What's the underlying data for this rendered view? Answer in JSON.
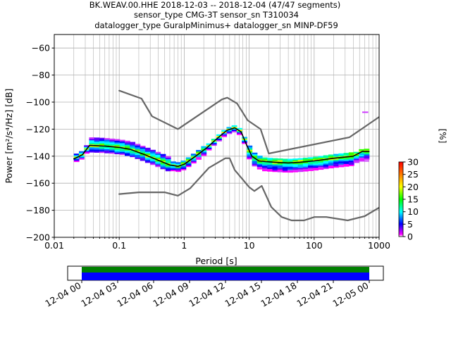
{
  "chart_data": {
    "type": "heatmap",
    "title_lines": [
      "BK.WEAV.00.HHE   2018-12-03 -- 2018-12-04  (47/47 segments)",
      "sensor_type CMG-3T sensor_sn T310034",
      "datalogger_type GuralpMinimus+ datalogger_sn MINP-DF59"
    ],
    "xlabel": "Period [s]",
    "ylabel": "Power [m²/s⁴/Hz] [dB]",
    "xscale": "log",
    "xlim": [
      0.01,
      1000
    ],
    "ylim": [
      -200,
      -50
    ],
    "xtick_labels": [
      "0.01",
      "0.1",
      "1",
      "10",
      "100",
      "1000"
    ],
    "ytick_values": [
      -200,
      -180,
      -160,
      -140,
      -120,
      -100,
      -80,
      -60
    ],
    "grid": true,
    "series": [
      {
        "role": "model-upper",
        "color": "#666666",
        "x": [
          0.1,
          0.22,
          0.32,
          0.8,
          3.8,
          4.6,
          6.5,
          9.5,
          15.0,
          20.0,
          350.0,
          1000.0
        ],
        "y": [
          -91.5,
          -97.4,
          -110.5,
          -120.0,
          -98.0,
          -96.7,
          -101.0,
          -113.5,
          -120.0,
          -138.0,
          -126.0,
          -111.0
        ]
      },
      {
        "role": "model-lower",
        "color": "#666666",
        "x": [
          0.1,
          0.2,
          0.5,
          0.8,
          1.24,
          2.4,
          4.3,
          5.0,
          6.0,
          10.0,
          12.0,
          15.6,
          21.9,
          31.6,
          45.0,
          70.0,
          101.0,
          154.0,
          328.0,
          600.0,
          1000.0
        ],
        "y": [
          -168.0,
          -166.7,
          -166.7,
          -169.2,
          -163.7,
          -148.6,
          -141.5,
          -141.5,
          -150.2,
          -162.9,
          -165.8,
          -162.0,
          -177.6,
          -185.0,
          -187.5,
          -187.5,
          -185.0,
          -185.0,
          -187.5,
          -184.4,
          -178.0
        ]
      },
      {
        "role": "mean",
        "color": "#000000",
        "x": [
          0.02,
          0.027,
          0.035,
          0.06,
          0.1,
          0.15,
          0.25,
          0.4,
          0.6,
          0.8,
          1.0,
          1.5,
          2.2,
          3.2,
          4.5,
          6.0,
          7.5,
          9.0,
          11.0,
          14.0,
          18.0,
          25.0,
          40.0,
          60.0,
          100.0,
          200.0,
          400.0,
          550.0,
          700.0
        ],
        "y": [
          -142.0,
          -139.0,
          -132.0,
          -132.5,
          -133.5,
          -135.0,
          -139.0,
          -143.0,
          -146.5,
          -147.5,
          -146.0,
          -140.0,
          -134.0,
          -127.0,
          -121.0,
          -119.0,
          -122.0,
          -131.0,
          -140.0,
          -143.5,
          -144.0,
          -144.5,
          -145.0,
          -144.5,
          -143.5,
          -141.5,
          -140.0,
          -136.5,
          -136.5
        ]
      }
    ],
    "colorbar": {
      "label": "[%]",
      "min": 0,
      "max": 30,
      "ticks": [
        0,
        5,
        10,
        15,
        20,
        25,
        30
      ],
      "colormap": "pqlx"
    },
    "coverage": {
      "xtick_labels": [
        "12-04 00",
        "12-04 03",
        "12-04 06",
        "12-04 09",
        "12-04 12",
        "12-04 15",
        "12-04 18",
        "12-04 21",
        "12-05 00"
      ],
      "bars": [
        {
          "role": "data",
          "color": "#008000"
        },
        {
          "role": "processed",
          "color": "#0000ff"
        }
      ]
    }
  }
}
